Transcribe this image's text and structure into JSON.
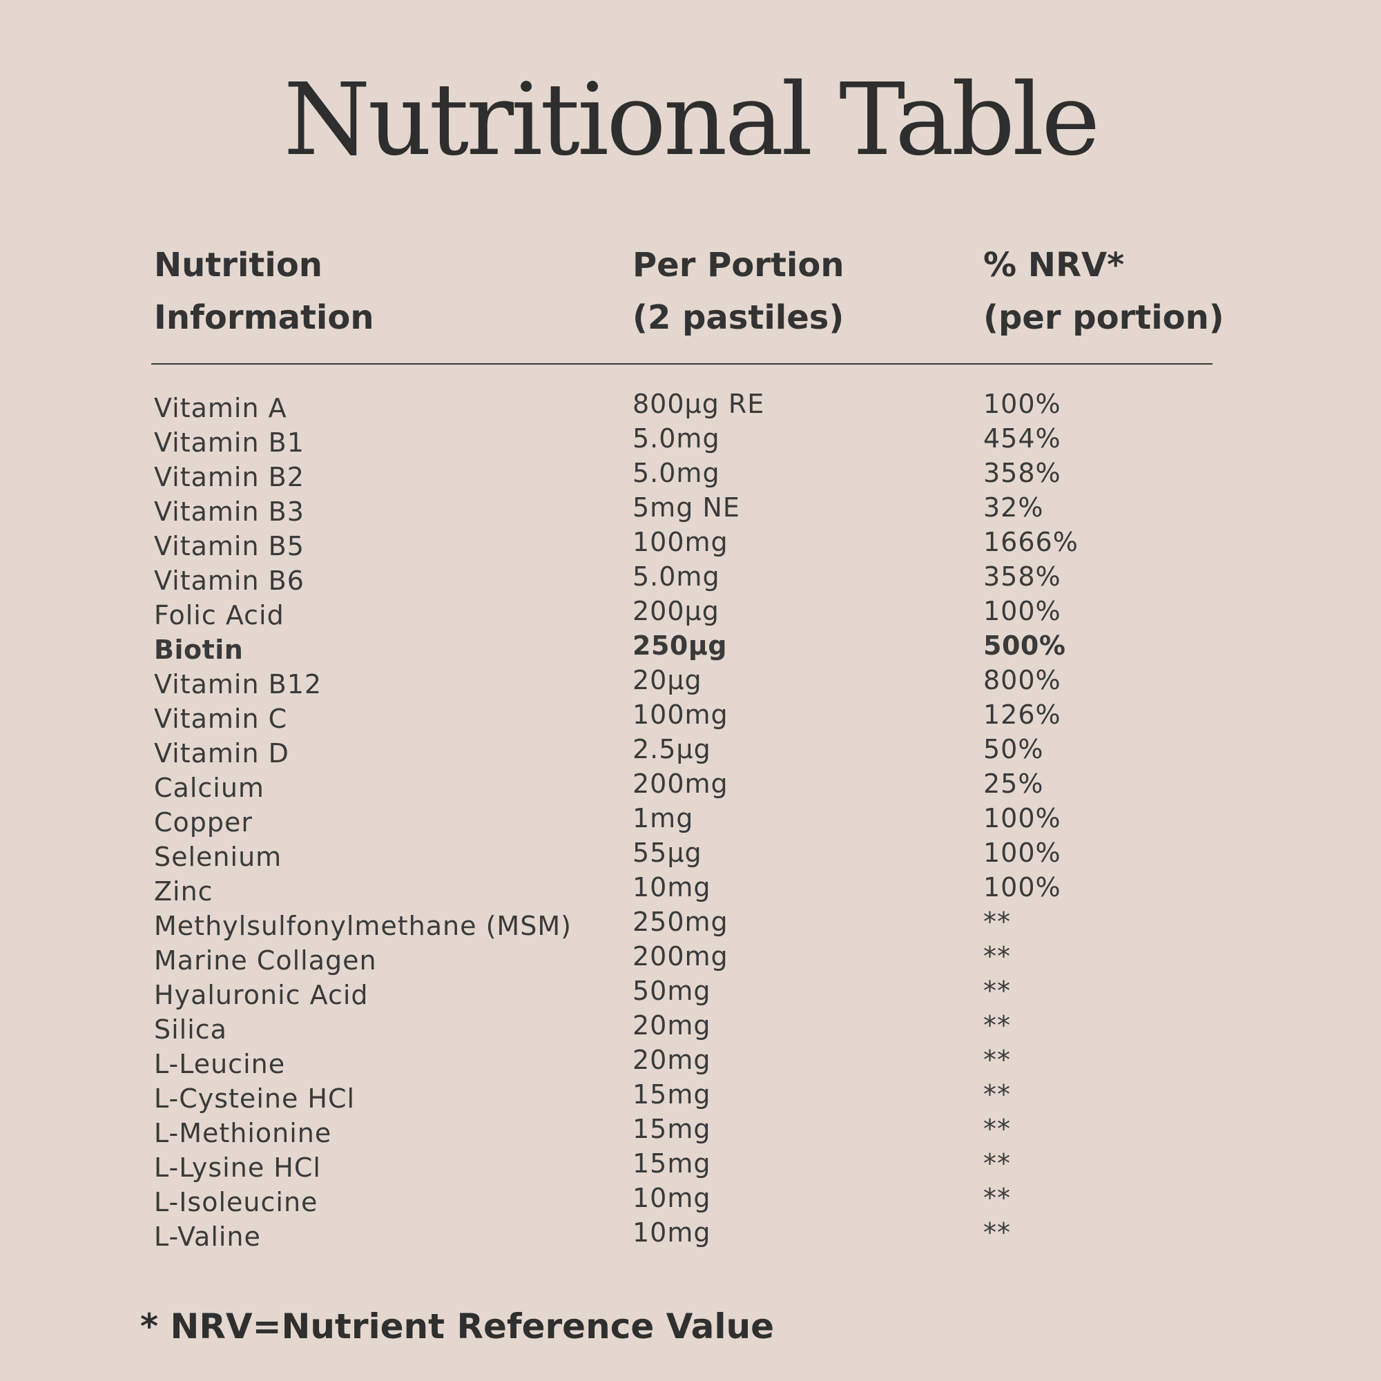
{
  "title": "Nutritional Table",
  "columns": {
    "nutrient": [
      "Nutrition",
      "Information"
    ],
    "per_portion": [
      "Per Portion",
      "(2 pastiles)"
    ],
    "nrv": [
      "% NRV*",
      "(per portion)"
    ]
  },
  "rows": [
    {
      "name": "Vitamin A",
      "amount": "800µg RE",
      "nrv": "100%",
      "bold": false
    },
    {
      "name": "Vitamin B1",
      "amount": "5.0mg",
      "nrv": "454%",
      "bold": false
    },
    {
      "name": "Vitamin B2",
      "amount": "5.0mg",
      "nrv": "358%",
      "bold": false
    },
    {
      "name": "Vitamin B3",
      "amount": "5mg NE",
      "nrv": "32%",
      "bold": false
    },
    {
      "name": "Vitamin B5",
      "amount": "100mg",
      "nrv": "1666%",
      "bold": false
    },
    {
      "name": "Vitamin B6",
      "amount": "5.0mg",
      "nrv": "358%",
      "bold": false
    },
    {
      "name": "Folic Acid",
      "amount": "200µg",
      "nrv": "100%",
      "bold": false
    },
    {
      "name": "Biotin",
      "amount": "250µg",
      "nrv": "500%",
      "bold": true
    },
    {
      "name": "Vitamin B12",
      "amount": "20µg",
      "nrv": "800%",
      "bold": false
    },
    {
      "name": "Vitamin C",
      "amount": "100mg",
      "nrv": "126%",
      "bold": false
    },
    {
      "name": "Vitamin D",
      "amount": "2.5µg",
      "nrv": "50%",
      "bold": false
    },
    {
      "name": "Calcium",
      "amount": "200mg",
      "nrv": "25%",
      "bold": false
    },
    {
      "name": "Copper",
      "amount": "1mg",
      "nrv": "100%",
      "bold": false
    },
    {
      "name": "Selenium",
      "amount": "55µg",
      "nrv": "100%",
      "bold": false
    },
    {
      "name": "Zinc",
      "amount": "10mg",
      "nrv": "100%",
      "bold": false
    },
    {
      "name": "Methylsulfonylmethane (MSM)",
      "amount": "250mg",
      "nrv": "**",
      "bold": false
    },
    {
      "name": "Marine Collagen",
      "amount": "200mg",
      "nrv": "**",
      "bold": false
    },
    {
      "name": "Hyaluronic Acid",
      "amount": "50mg",
      "nrv": "**",
      "bold": false
    },
    {
      "name": "Silica",
      "amount": "20mg",
      "nrv": "**",
      "bold": false
    },
    {
      "name": "L-Leucine",
      "amount": "20mg",
      "nrv": "**",
      "bold": false
    },
    {
      "name": "L-Cysteine HCl",
      "amount": "15mg",
      "nrv": "**",
      "bold": false
    },
    {
      "name": "L-Methionine",
      "amount": "15mg",
      "nrv": "**",
      "bold": false
    },
    {
      "name": "L-Lysine HCl",
      "amount": "15mg",
      "nrv": "**",
      "bold": false
    },
    {
      "name": "L-Isoleucine",
      "amount": "10mg",
      "nrv": "**",
      "bold": false
    },
    {
      "name": "L-Valine",
      "amount": "10mg",
      "nrv": "**",
      "bold": false
    }
  ],
  "footnote": "* NRV=Nutrient Reference Value"
}
